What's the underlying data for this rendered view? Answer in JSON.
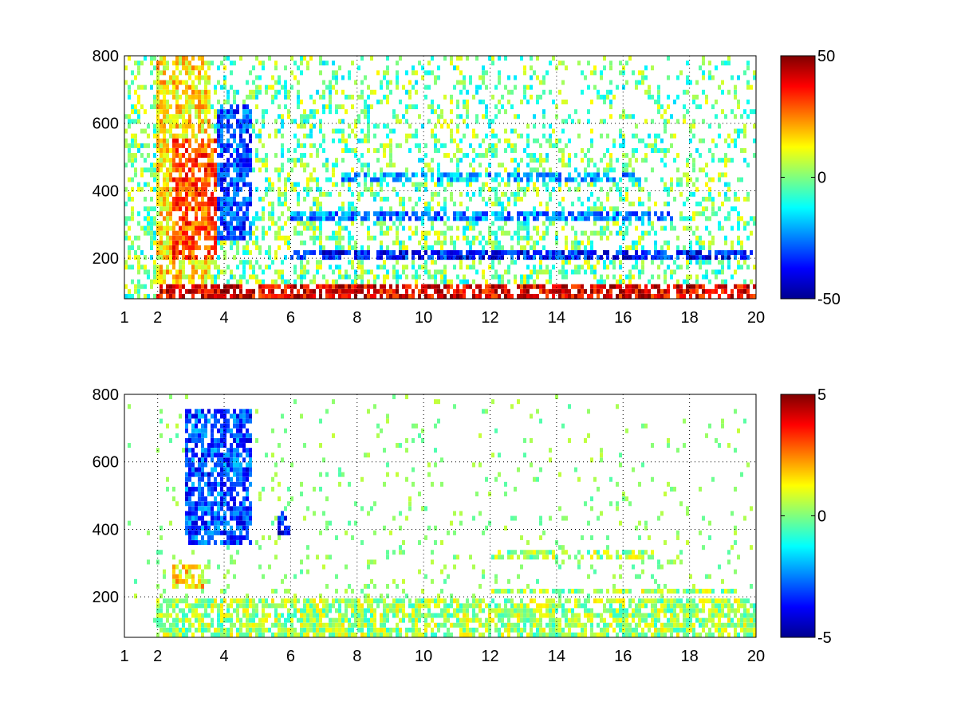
{
  "chart_data": [
    {
      "type": "heatmap",
      "title": "",
      "xlabel": "",
      "ylabel": "",
      "xlim": [
        1,
        20
      ],
      "ylim": [
        80,
        800
      ],
      "x_ticks": [
        1,
        2,
        4,
        6,
        8,
        10,
        12,
        14,
        16,
        18,
        20
      ],
      "y_ticks": [
        200,
        400,
        600,
        800
      ],
      "grid": true,
      "colorbar": {
        "min": -50,
        "max": 50,
        "ticks": [
          50,
          0,
          -50
        ],
        "colormap": "jet"
      },
      "features": [
        {
          "x_range": [
            2.0,
            3.6
          ],
          "y_range": [
            80,
            800
          ],
          "level": 15,
          "note": "warm region"
        },
        {
          "x_range": [
            2.4,
            3.8
          ],
          "y_range": [
            200,
            560
          ],
          "level": 30
        },
        {
          "x_range": [
            3.8,
            4.8
          ],
          "y_range": [
            250,
            650
          ],
          "level": -30
        },
        {
          "x_range": [
            2.0,
            20.0
          ],
          "y_range": [
            80,
            120
          ],
          "level": 40,
          "note": "bottom hot band"
        },
        {
          "x_range": [
            6.0,
            20.0
          ],
          "y_range": [
            190,
            225
          ],
          "level": -35,
          "note": "blue band"
        },
        {
          "x_range": [
            6.0,
            17.5
          ],
          "y_range": [
            310,
            340
          ],
          "level": -25,
          "note": "blue band"
        },
        {
          "x_range": [
            7.5,
            16.5
          ],
          "y_range": [
            425,
            455
          ],
          "level": -20,
          "note": "cyan band"
        }
      ]
    },
    {
      "type": "heatmap",
      "title": "",
      "xlabel": "",
      "ylabel": "",
      "xlim": [
        1,
        20
      ],
      "ylim": [
        80,
        800
      ],
      "x_ticks": [
        1,
        2,
        4,
        6,
        8,
        10,
        12,
        14,
        16,
        18,
        20
      ],
      "y_ticks": [
        200,
        400,
        600,
        800
      ],
      "grid": true,
      "colorbar": {
        "min": -5,
        "max": 5,
        "ticks": [
          5,
          0,
          -5
        ],
        "colormap": "jet"
      },
      "features": [
        {
          "x_range": [
            2.0,
            20.0
          ],
          "y_range": [
            80,
            200
          ],
          "level": 0.3,
          "note": "mostly near-zero green"
        },
        {
          "x_range": [
            2.8,
            4.8
          ],
          "y_range": [
            350,
            760
          ],
          "level": -3,
          "note": "blue streaks"
        },
        {
          "x_range": [
            2.4,
            3.4
          ],
          "y_range": [
            230,
            300
          ],
          "level": 1.5,
          "note": "yellow patch"
        },
        {
          "x_range": [
            5.6,
            6.0
          ],
          "y_range": [
            380,
            460
          ],
          "level": -3.5
        },
        {
          "x_range": [
            12.0,
            19.5
          ],
          "y_range": [
            205,
            225
          ],
          "level": 0.3
        },
        {
          "x_range": [
            12.0,
            17.0
          ],
          "y_range": [
            315,
            335
          ],
          "level": 0.3
        }
      ]
    }
  ]
}
